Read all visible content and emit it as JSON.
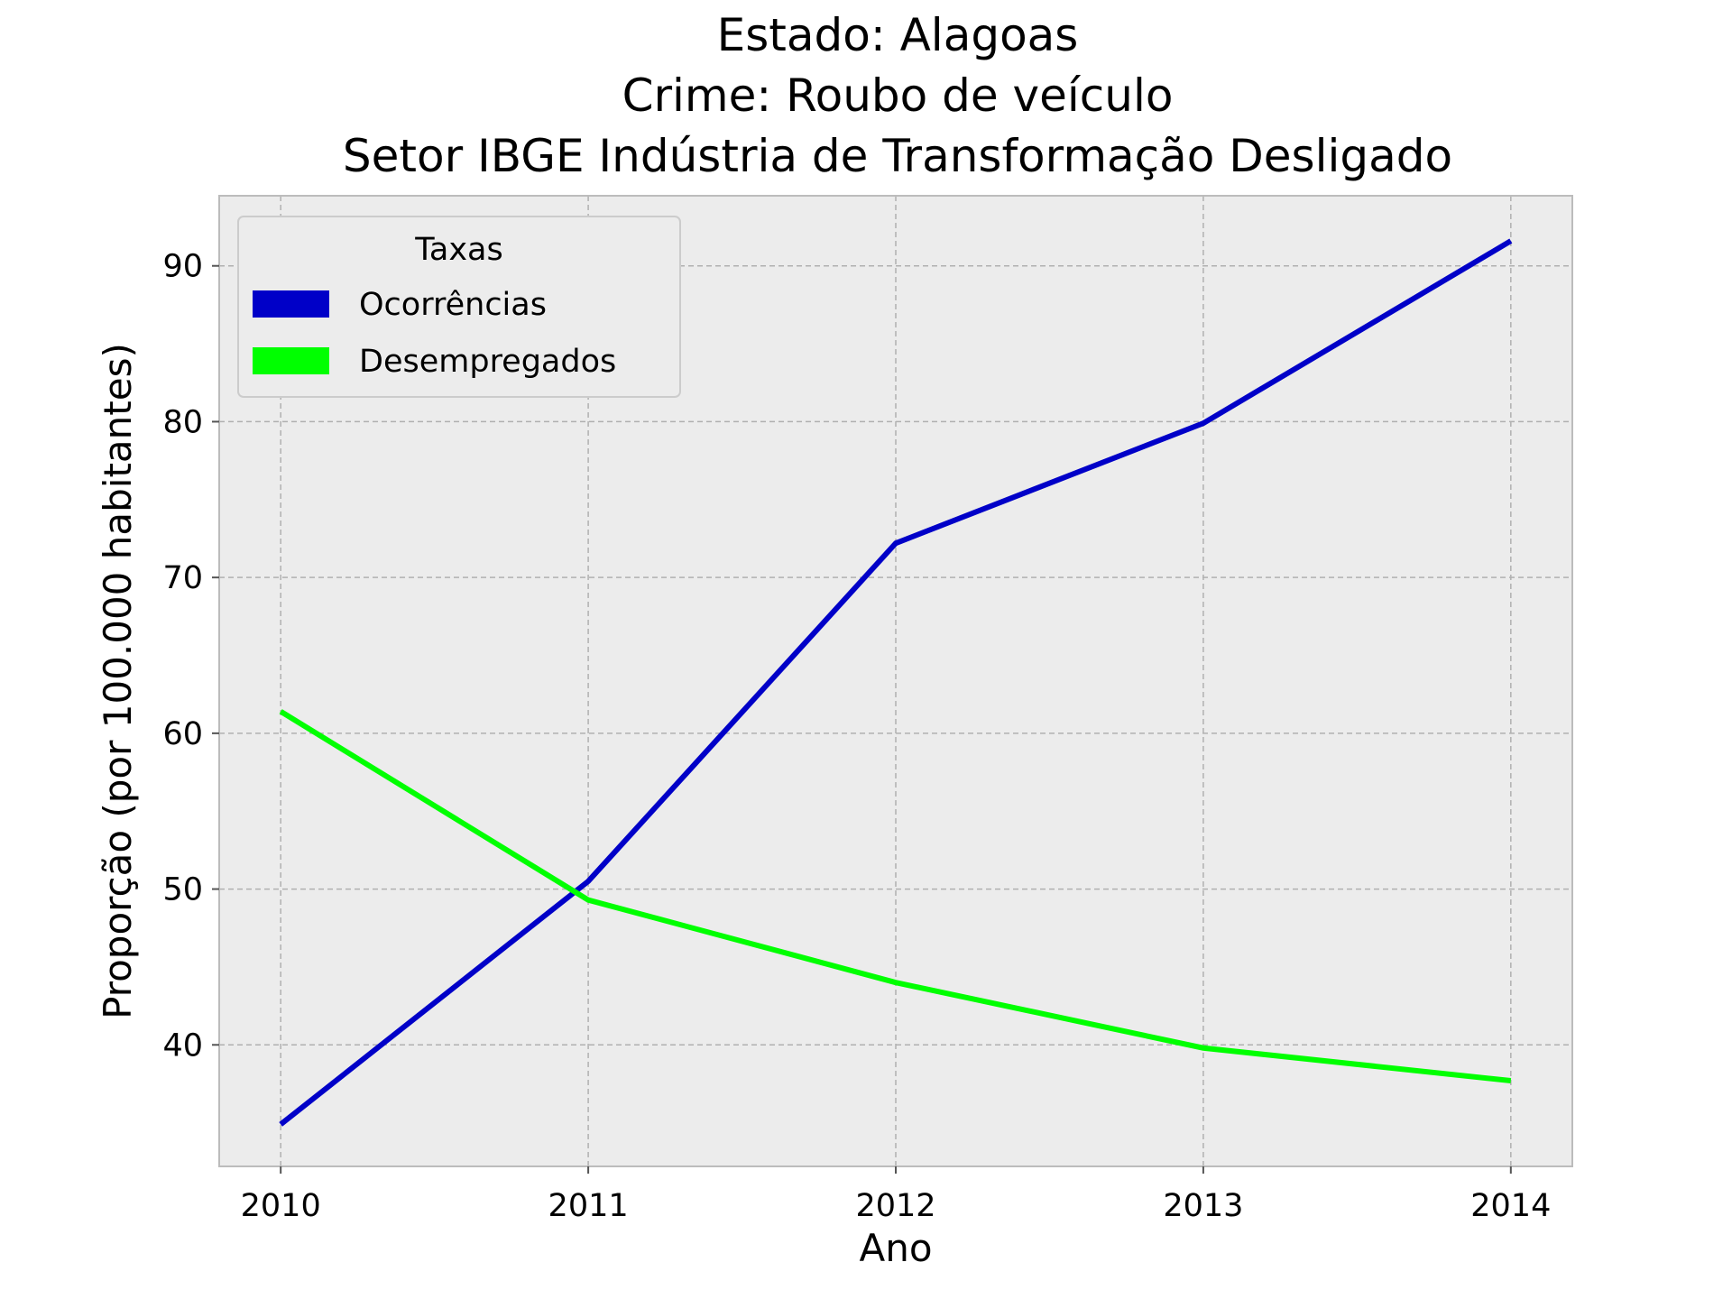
{
  "chart_data": {
    "type": "line",
    "title_lines": [
      "Estado: Alagoas",
      "Crime: Roubo de veículo",
      "Setor IBGE  Indústria de Transformação   Desligado"
    ],
    "xlabel": "Ano",
    "ylabel": "Proporção (por 100.000 habitantes)",
    "x": [
      "2010",
      "2011",
      "2012",
      "2013",
      "2014"
    ],
    "y_ticks": [
      "40",
      "50",
      "60",
      "70",
      "80",
      "90"
    ],
    "xlim": [
      2009.8,
      2014.2
    ],
    "ylim": [
      32.2,
      94.5
    ],
    "grid": true,
    "legend": {
      "title": "Taxas",
      "placement": "top-left"
    },
    "series": [
      {
        "name": "Ocorrências",
        "color": "#0000c8",
        "values": [
          34.9,
          50.5,
          72.2,
          79.9,
          91.6
        ]
      },
      {
        "name": "Desempregados",
        "color": "#00ff00",
        "values": [
          61.4,
          49.3,
          44.0,
          39.8,
          37.7
        ]
      }
    ],
    "plot_background": "#ececec",
    "frame_color": "#bcbcbc",
    "grid_color": "#b0b0b0"
  }
}
